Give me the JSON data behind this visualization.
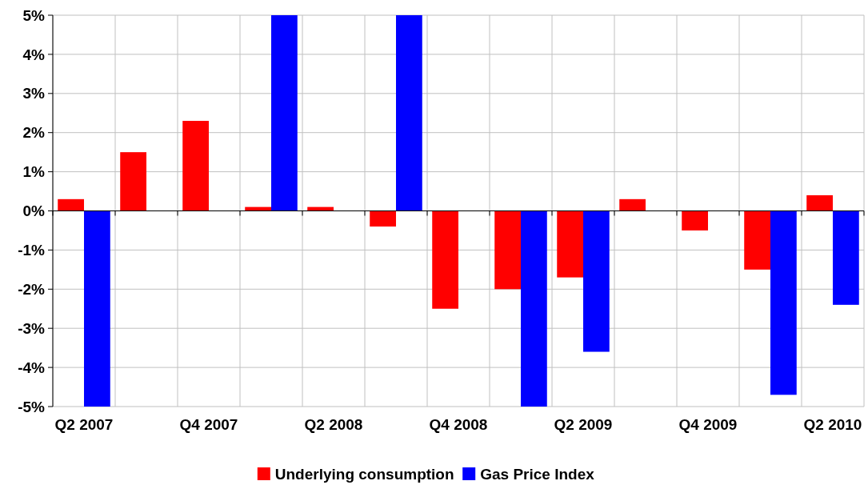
{
  "chart_data": {
    "type": "bar",
    "categories": [
      "Q2 2007",
      null,
      "Q4 2007",
      null,
      "Q2 2008",
      null,
      "Q4 2008",
      null,
      "Q2 2009",
      null,
      "Q4 2009",
      null,
      "Q2 2010"
    ],
    "series": [
      {
        "name": "Underlying consumption",
        "color": "#ff0000",
        "values": [
          0.3,
          1.5,
          2.3,
          0.1,
          0.1,
          -0.4,
          -2.5,
          -2.0,
          -1.7,
          0.3,
          -0.5,
          -1.5,
          0.4
        ]
      },
      {
        "name": "Gas Price Index",
        "color": "#0000ff",
        "values": [
          -5,
          null,
          null,
          5,
          null,
          5,
          null,
          -5,
          -3.6,
          null,
          null,
          -4.7,
          -2.4
        ]
      }
    ],
    "ylim": [
      -5,
      5
    ],
    "yticks": [
      {
        "value": -5,
        "label": "-5%"
      },
      {
        "value": -4,
        "label": "-4%"
      },
      {
        "value": -3,
        "label": "-3%"
      },
      {
        "value": -2,
        "label": "-2%"
      },
      {
        "value": -1,
        "label": "-1%"
      },
      {
        "value": 0,
        "label": "0%"
      },
      {
        "value": 1,
        "label": "1%"
      },
      {
        "value": 2,
        "label": "2%"
      },
      {
        "value": 3,
        "label": "3%"
      },
      {
        "value": 4,
        "label": "4%"
      },
      {
        "value": 5,
        "label": "5%"
      }
    ],
    "grid": true,
    "legend": "bottom"
  }
}
